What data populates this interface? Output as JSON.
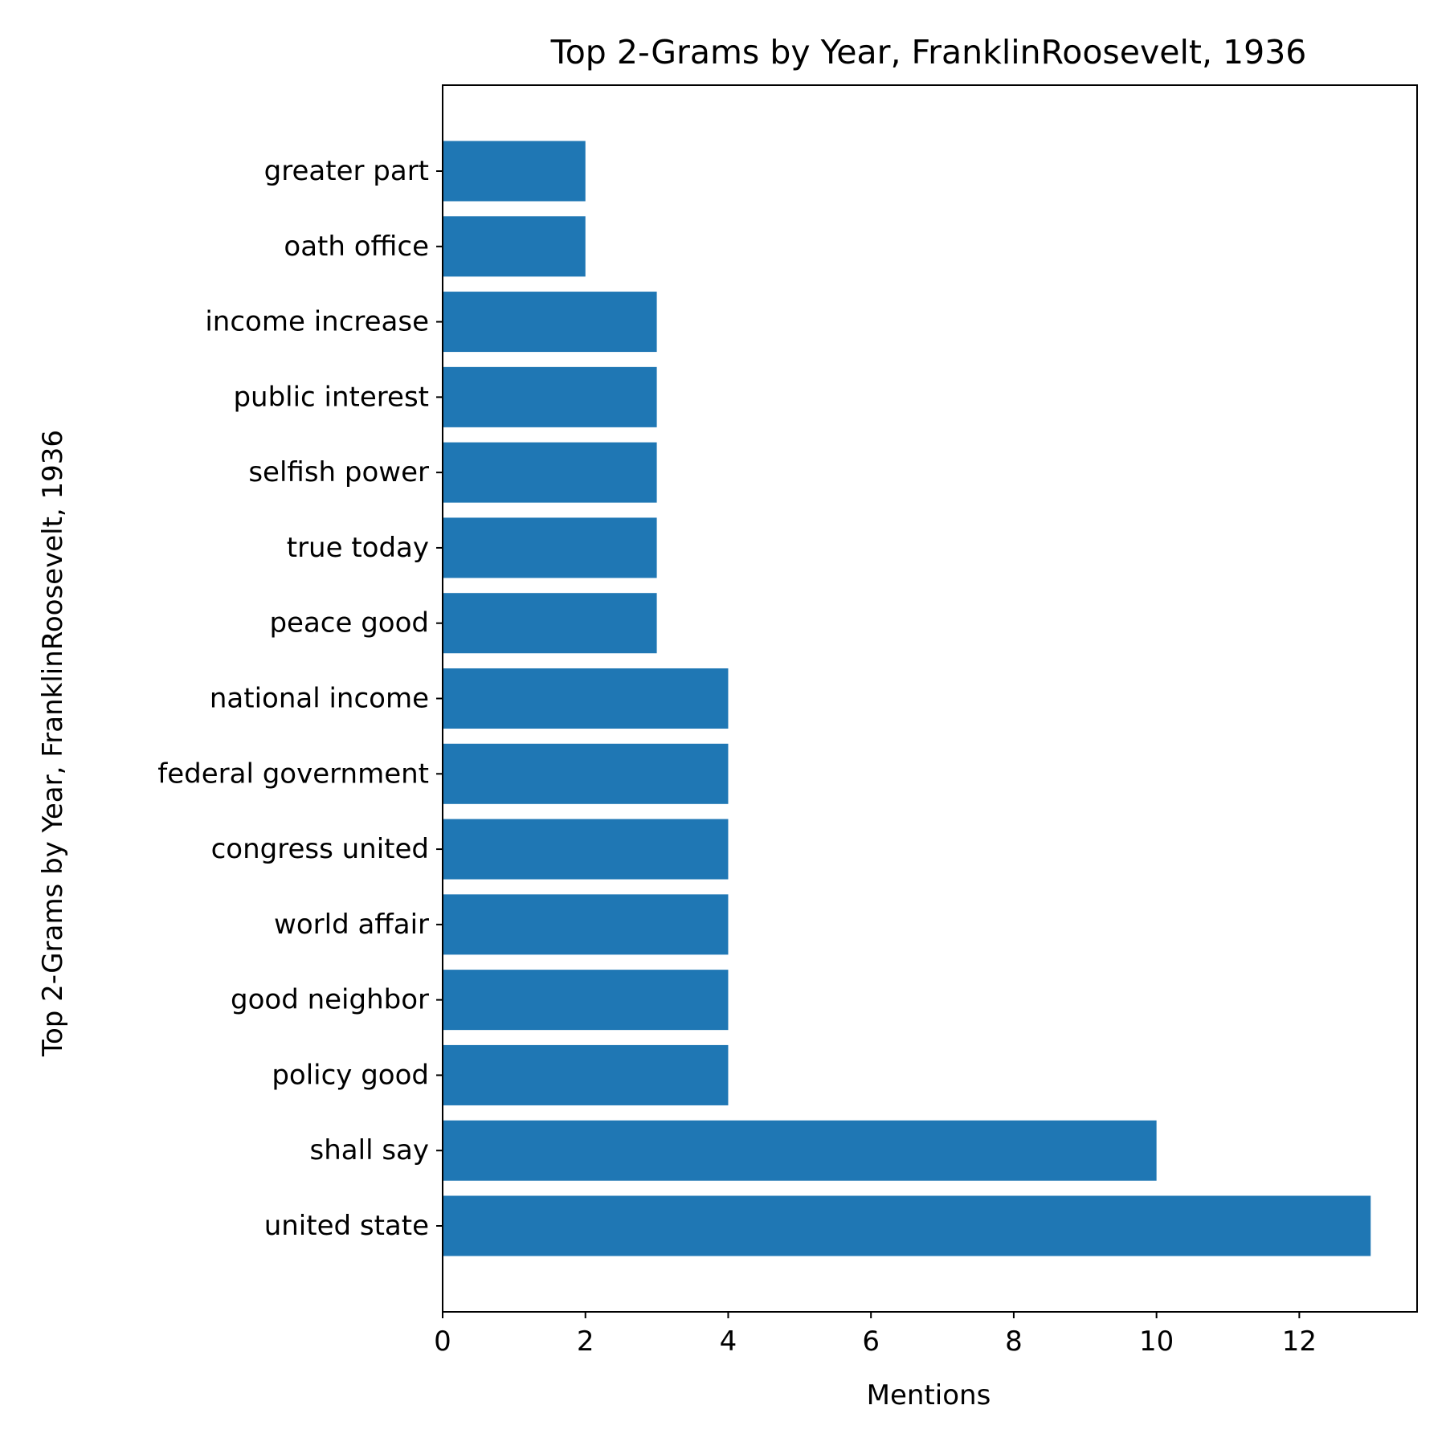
{
  "chart_data": {
    "type": "bar",
    "orientation": "horizontal",
    "title": "Top 2-Grams by Year, FranklinRoosevelt, 1936",
    "xlabel": "Mentions",
    "ylabel": "Top 2-Grams by Year, FranklinRoosevelt, 1936",
    "categories": [
      "united state",
      "shall say",
      "policy good",
      "good neighbor",
      "world affair",
      "congress united",
      "federal government",
      "national income",
      "peace good",
      "true today",
      "selfish power",
      "public interest",
      "income increase",
      "oath office",
      "greater part"
    ],
    "values": [
      13,
      10,
      4,
      4,
      4,
      4,
      4,
      4,
      3,
      3,
      3,
      3,
      3,
      2,
      2
    ],
    "xlim": [
      0,
      13.65
    ],
    "xticks": [
      0,
      2,
      4,
      6,
      8,
      10,
      12
    ],
    "bar_color": "#1f77b4",
    "grid": false,
    "legend": "none"
  }
}
